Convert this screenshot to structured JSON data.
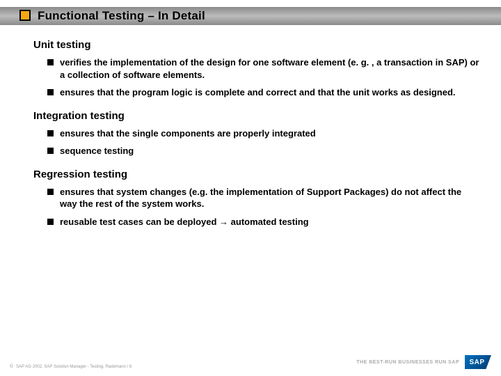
{
  "colors": {
    "title_marker": "#f3a814",
    "title_bar_gradient_top": "#8a8a8a",
    "title_bar_gradient_mid": "#bcbcbc",
    "bullet": "#000000",
    "text": "#000000",
    "footer_text": "#999999",
    "tagline_text": "#aaaaaa",
    "sap_blue_light": "#0070c0",
    "sap_blue_dark": "#003a70",
    "background": "#ffffff"
  },
  "typography": {
    "title_fontsize": 17,
    "heading_fontsize": 15,
    "body_fontsize": 13,
    "footer_fontsize": 6,
    "tagline_fontsize": 7,
    "font_family": "Arial"
  },
  "title": "Functional Testing – In Detail",
  "sections": [
    {
      "heading": "Unit testing",
      "bullets": [
        "verifies the implementation of the design for one software element (e. g. , a transaction in SAP) or a collection of software elements.",
        "ensures that the program logic is complete and correct and that the unit works as designed."
      ]
    },
    {
      "heading": "Integration testing",
      "bullets": [
        "ensures that the single components are properly integrated",
        "sequence testing"
      ]
    },
    {
      "heading": "Regression testing",
      "bullets": [
        "ensures that system changes (e.g. the implementation of Support Packages) do not affect the way the rest of the system works.",
        "reusable test cases can be deployed → automated testing"
      ]
    }
  ],
  "footer": {
    "copyright": "©",
    "text": "SAP AG 2002, SAP Solution Manager - Testing, Rademann / 6",
    "tagline": "THE BEST-RUN BUSINESSES RUN SAP",
    "logo_text": "SAP"
  }
}
